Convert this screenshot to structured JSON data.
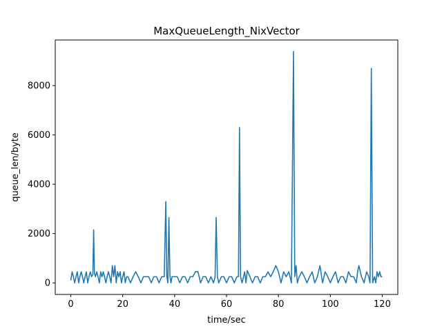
{
  "chart_data": {
    "type": "line",
    "title": "MaxQueueLength_NixVector",
    "xlabel": "time/sec",
    "ylabel": "queue_len/byte",
    "xlim": [
      -6,
      126
    ],
    "ylim": [
      -470,
      9850
    ],
    "xticks": [
      0,
      20,
      40,
      60,
      80,
      100,
      120
    ],
    "xtick_labels": [
      "0",
      "20",
      "40",
      "60",
      "80",
      "100",
      "120"
    ],
    "yticks": [
      0,
      2000,
      4000,
      6000,
      8000
    ],
    "ytick_labels": [
      "0",
      "2000",
      "4000",
      "6000",
      "8000"
    ],
    "grid": false,
    "series": [
      {
        "color": "#1f77b4",
        "x": [
          0,
          0.5,
          1,
          1.5,
          2,
          2.5,
          3,
          3.5,
          4,
          4.5,
          5,
          5.5,
          6,
          6.5,
          7,
          7.5,
          8,
          8.5,
          8.8,
          9.1,
          9.5,
          10,
          10.5,
          11,
          11.5,
          12,
          12.5,
          13,
          13.5,
          14,
          14.5,
          15,
          15.5,
          16,
          16.5,
          17,
          17.5,
          18,
          18.5,
          19,
          19.5,
          20,
          20.5,
          21,
          21.5,
          22,
          23,
          24,
          25,
          26,
          27,
          28,
          29,
          30,
          31,
          32,
          33,
          34,
          35,
          36,
          36.6,
          37,
          37.4,
          37.8,
          38.2,
          38.6,
          39,
          40,
          41,
          42,
          43,
          44,
          45,
          46,
          47,
          48,
          49,
          50,
          51,
          52,
          53,
          54,
          55,
          55.6,
          56,
          56.5,
          57,
          58,
          59,
          60,
          61,
          62,
          63,
          64,
          64.6,
          65,
          65.4,
          66,
          67,
          67.5,
          68,
          69,
          70,
          71,
          72,
          73,
          74,
          75,
          76,
          77,
          78,
          79,
          80,
          81,
          82,
          83,
          84,
          85,
          85.8,
          86.3,
          86.8,
          87.3,
          88,
          89,
          90,
          91,
          92,
          93,
          94,
          95,
          96,
          97,
          98,
          99,
          100,
          101,
          102,
          103,
          104,
          105,
          106,
          107,
          108,
          109,
          110,
          110.5,
          111,
          112,
          113,
          114,
          114.8,
          115.3,
          115.8,
          116.3,
          117,
          117.5,
          118,
          118.5,
          119,
          119.5,
          120
        ],
        "y": [
          100,
          450,
          250,
          0,
          250,
          450,
          0,
          250,
          450,
          250,
          0,
          250,
          450,
          0,
          250,
          450,
          250,
          350,
          2150,
          400,
          250,
          450,
          250,
          0,
          450,
          250,
          450,
          250,
          0,
          250,
          450,
          250,
          0,
          700,
          250,
          700,
          0,
          450,
          250,
          450,
          0,
          250,
          450,
          0,
          250,
          250,
          0,
          250,
          450,
          250,
          0,
          250,
          250,
          250,
          0,
          250,
          250,
          0,
          250,
          250,
          3300,
          250,
          0,
          2650,
          250,
          0,
          250,
          250,
          250,
          0,
          250,
          250,
          0,
          250,
          250,
          450,
          450,
          0,
          250,
          250,
          0,
          250,
          0,
          250,
          2650,
          250,
          0,
          250,
          250,
          0,
          250,
          250,
          0,
          250,
          250,
          6300,
          250,
          0,
          450,
          0,
          500,
          250,
          0,
          250,
          250,
          0,
          250,
          250,
          450,
          250,
          450,
          700,
          450,
          0,
          450,
          250,
          450,
          0,
          9380,
          250,
          700,
          0,
          250,
          450,
          250,
          0,
          250,
          450,
          0,
          250,
          700,
          0,
          450,
          250,
          0,
          250,
          450,
          0,
          250,
          250,
          0,
          450,
          250,
          250,
          0,
          450,
          700,
          250,
          0,
          450,
          250,
          0,
          8700,
          0,
          250,
          0,
          450,
          250,
          450,
          250,
          250
        ]
      }
    ]
  }
}
